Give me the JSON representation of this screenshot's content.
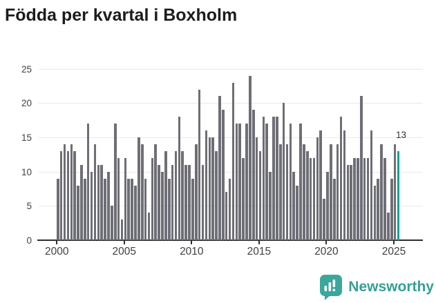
{
  "title": "Födda per kvartal i Boxholm",
  "colors": {
    "bar": "#6e6e76",
    "highlight": "#12a296",
    "grid": "#e9e9e9",
    "axis_line": "#2d2d2d",
    "tick_text": "#404040",
    "title_text": "#1c1c1c",
    "logo": "#35a095"
  },
  "chart_data": {
    "type": "bar",
    "title": "Födda per kvartal i Boxholm",
    "xlabel": "",
    "ylabel": "",
    "ylim": [
      0,
      25
    ],
    "yticks": [
      0,
      5,
      10,
      15,
      20,
      25
    ],
    "xticks": [
      2000,
      2005,
      2010,
      2015,
      2020,
      2025
    ],
    "grid": "horizontal",
    "legend": "none",
    "x_unit": "quarter",
    "first_quarter": "2000 Q1",
    "last_quarter": "2025 Q2",
    "highlight_last_bar": true,
    "last_label": "13",
    "series_by_year": [
      {
        "year": 2000,
        "values": [
          9,
          13,
          14,
          13
        ]
      },
      {
        "year": 2001,
        "values": [
          14,
          13,
          8,
          11
        ]
      },
      {
        "year": 2002,
        "values": [
          9,
          17,
          10,
          14
        ]
      },
      {
        "year": 2003,
        "values": [
          11,
          11,
          9,
          10
        ]
      },
      {
        "year": 2004,
        "values": [
          5,
          17,
          12,
          3
        ]
      },
      {
        "year": 2005,
        "values": [
          12,
          9,
          9,
          8
        ]
      },
      {
        "year": 2006,
        "values": [
          15,
          14,
          9,
          4
        ]
      },
      {
        "year": 2007,
        "values": [
          12,
          14,
          11,
          10
        ]
      },
      {
        "year": 2008,
        "values": [
          13,
          9,
          11,
          13
        ]
      },
      {
        "year": 2009,
        "values": [
          18,
          13,
          11,
          11
        ]
      },
      {
        "year": 2010,
        "values": [
          9,
          14,
          22,
          11
        ]
      },
      {
        "year": 2011,
        "values": [
          16,
          15,
          15,
          13
        ]
      },
      {
        "year": 2012,
        "values": [
          21,
          19,
          7,
          9
        ]
      },
      {
        "year": 2013,
        "values": [
          23,
          17,
          17,
          12
        ]
      },
      {
        "year": 2014,
        "values": [
          17,
          24,
          19,
          15
        ]
      },
      {
        "year": 2015,
        "values": [
          13,
          18,
          17,
          10
        ]
      },
      {
        "year": 2016,
        "values": [
          18,
          18,
          14,
          20
        ]
      },
      {
        "year": 2017,
        "values": [
          14,
          17,
          10,
          8
        ]
      },
      {
        "year": 2018,
        "values": [
          17,
          14,
          13,
          12
        ]
      },
      {
        "year": 2019,
        "values": [
          12,
          15,
          16,
          6
        ]
      },
      {
        "year": 2020,
        "values": [
          10,
          14,
          9,
          14
        ]
      },
      {
        "year": 2021,
        "values": [
          18,
          16,
          11,
          11
        ]
      },
      {
        "year": 2022,
        "values": [
          12,
          12,
          21,
          12
        ]
      },
      {
        "year": 2023,
        "values": [
          12,
          16,
          8,
          9
        ]
      },
      {
        "year": 2024,
        "values": [
          14,
          12,
          4,
          9
        ]
      },
      {
        "year": 2025,
        "values": [
          14,
          13
        ]
      }
    ]
  },
  "footer": {
    "brand": "Newsworthy"
  }
}
